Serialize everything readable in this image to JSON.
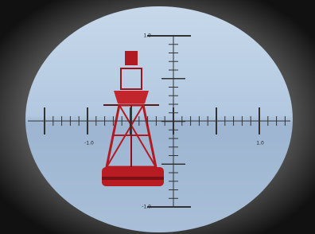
{
  "reticle": {
    "vertical": {
      "top_label": "1.0",
      "bottom_label": "-1.0"
    },
    "horizontal": {
      "left_label": "-1.0",
      "right_label": "1.0"
    }
  }
}
